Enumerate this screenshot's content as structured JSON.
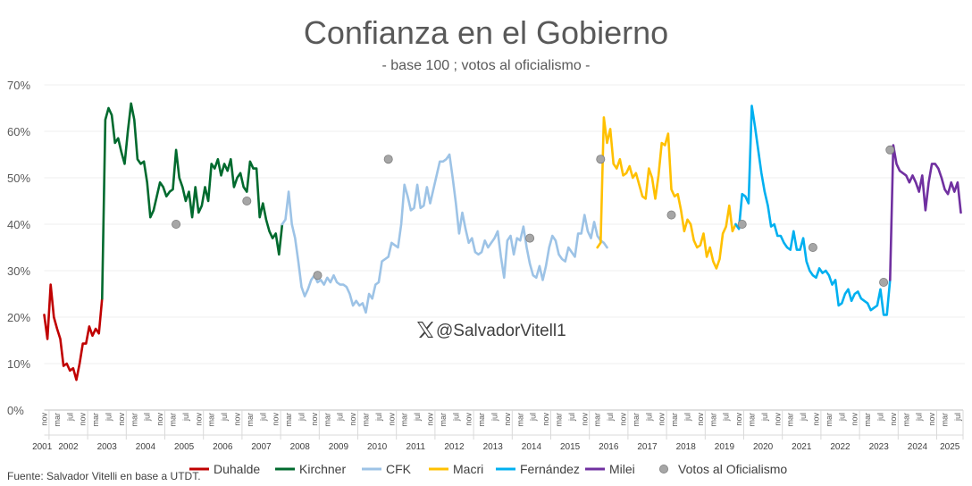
{
  "chart_data": {
    "type": "line",
    "title": "Confianza en el Gobierno",
    "subtitle": "- base 100 ; votos al oficialismo -",
    "ylim": [
      0,
      70
    ],
    "yticks": [
      "0%",
      "10%",
      "20%",
      "30%",
      "40%",
      "50%",
      "60%",
      "70%"
    ],
    "x_start": "2001-11",
    "month_tick_labels": [
      "nov",
      "mar",
      "jul",
      "nov",
      "mar",
      "jul",
      "nov",
      "mar",
      "jul",
      "nov",
      "mar",
      "jul",
      "nov",
      "mar",
      "jul",
      "nov",
      "mar",
      "jul",
      "nov",
      "mar",
      "jul",
      "nov",
      "mar",
      "jul",
      "nov",
      "mar",
      "jul",
      "nov",
      "mar",
      "jul",
      "nov",
      "mar",
      "jul",
      "nov",
      "mar",
      "jul",
      "nov",
      "mar",
      "jul",
      "nov",
      "mar",
      "jul",
      "nov",
      "mar",
      "jul",
      "nov",
      "mar",
      "jul",
      "nov",
      "mar",
      "jul",
      "nov",
      "mar",
      "jul",
      "nov",
      "mar",
      "jul",
      "nov",
      "mar",
      "jul",
      "nov",
      "mar",
      "jul",
      "nov",
      "mar",
      "jul",
      "nov",
      "mar",
      "jul",
      "nov",
      "mar",
      "jul"
    ],
    "years": [
      "2001",
      "2002",
      "2003",
      "2004",
      "2005",
      "2006",
      "2007",
      "2008",
      "2009",
      "2010",
      "2011",
      "2012",
      "2013",
      "2014",
      "2015",
      "2016",
      "2017",
      "2018",
      "2019",
      "2020",
      "2021",
      "2022",
      "2023",
      "2024",
      "2025"
    ],
    "series": [
      {
        "name": "Duhalde",
        "color": "#c00000",
        "start": 0,
        "values": [
          20.5,
          15.3,
          27,
          20,
          17.5,
          15.3,
          9.5,
          10,
          8.5,
          9,
          6.5,
          10,
          14.3,
          14.3,
          18,
          16,
          17.5,
          16.5,
          24
        ]
      },
      {
        "name": "Kirchner",
        "color": "#006a2e",
        "start": 18,
        "values": [
          24,
          62.5,
          65,
          63.5,
          57.5,
          58.5,
          55.5,
          53,
          60,
          66,
          62.5,
          54,
          53,
          53.5,
          49,
          41.5,
          43,
          46,
          49,
          48,
          46,
          47,
          47.5,
          56,
          50,
          48,
          45,
          47,
          41.5,
          48,
          42.5,
          44,
          48,
          45,
          53,
          52,
          54,
          50.5,
          53,
          51.5,
          54,
          48,
          50,
          51,
          48,
          47,
          53.5,
          52,
          52,
          41.5,
          44.5,
          41,
          38.5,
          37,
          38,
          33.5,
          40
        ]
      },
      {
        "name": "CFK",
        "color": "#9dc3e6",
        "start": 74,
        "values": [
          40,
          41,
          47,
          40,
          37,
          32,
          26.5,
          24.5,
          26,
          28,
          29,
          27.5,
          28,
          27,
          28.5,
          27.5,
          29,
          27.5,
          27,
          27,
          26.5,
          25,
          22.5,
          23.5,
          22.5,
          23,
          21,
          25,
          24,
          27,
          27.5,
          32,
          32.5,
          33,
          36,
          35.5,
          35,
          40,
          48.5,
          46,
          43,
          43.5,
          48.5,
          43.5,
          44,
          48,
          44.5,
          47.5,
          50.5,
          53.5,
          53.5,
          54,
          55,
          50,
          44.5,
          38,
          42.5,
          39,
          36,
          37,
          34,
          33.5,
          34,
          36.5,
          35,
          36,
          37,
          38.5,
          33,
          28.5,
          36.5,
          37.5,
          33.5,
          37,
          36.5,
          39.5,
          35,
          31.5,
          29,
          28.5,
          31,
          28,
          31,
          35,
          37.5,
          36.5,
          33.5,
          32.5,
          32,
          35,
          34,
          33,
          38,
          38,
          42,
          38.5,
          37,
          40.5,
          37.5,
          36.5,
          36,
          35
        ]
      },
      {
        "name": "Macri",
        "color": "#ffc000",
        "start": 172,
        "values": [
          35,
          36,
          63,
          57.5,
          60.5,
          53,
          52,
          54,
          50.5,
          51,
          52.5,
          50,
          51,
          48.5,
          46,
          45.5,
          52,
          50,
          45.5,
          50.5,
          57.5,
          57,
          59.5,
          47.5,
          46,
          46.5,
          43,
          38.5,
          41,
          40,
          36.5,
          35,
          35.5,
          38,
          33,
          35,
          32,
          30.5,
          32.5,
          38,
          39.5,
          44,
          38.5,
          40
        ]
      },
      {
        "name": "Fernández",
        "color": "#00b0f0",
        "start": 215,
        "values": [
          40,
          39,
          46.5,
          46,
          44.5,
          65.5,
          61,
          56,
          51,
          47,
          44,
          39.5,
          40,
          37.5,
          37.5,
          36,
          35,
          34.5,
          38.5,
          34.5,
          34.5,
          37,
          32,
          30,
          29,
          28.5,
          30.5,
          29.5,
          30,
          29,
          27,
          28,
          22.5,
          23,
          25,
          26,
          23.5,
          25,
          25.5,
          24,
          23.5,
          23,
          21.5,
          22,
          22.5,
          26,
          20.5,
          20.5,
          28
        ]
      },
      {
        "name": "Milei",
        "color": "#7030a0",
        "start": 263,
        "values": [
          28,
          57,
          53,
          51.5,
          51,
          50.5,
          49,
          50.5,
          49,
          47,
          50.5,
          43,
          49,
          53,
          53,
          52,
          50,
          47.5,
          46.5,
          49,
          47,
          49,
          42.5
        ]
      }
    ],
    "votes": {
      "name": "Votos al Oficialismo",
      "color": "#a6a6a6",
      "points": [
        [
          41,
          40
        ],
        [
          63,
          45
        ],
        [
          85,
          29
        ],
        [
          107,
          54
        ],
        [
          151,
          37
        ],
        [
          173,
          54
        ],
        [
          195,
          42
        ],
        [
          217,
          40
        ],
        [
          239,
          35
        ],
        [
          261,
          27.5
        ],
        [
          263,
          56
        ]
      ]
    }
  },
  "watermark": "@SalvadorVitell1",
  "source": "Fuente: Salvador Vitelli en base a UTDT."
}
